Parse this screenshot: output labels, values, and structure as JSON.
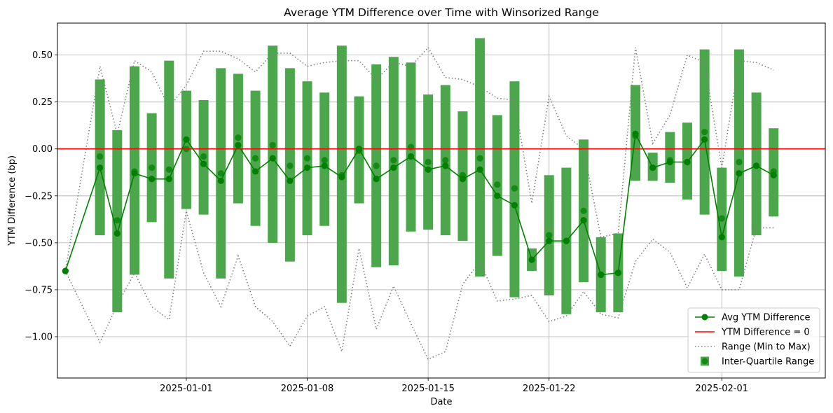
{
  "chart_data": {
    "type": "line",
    "title": "Average YTM Difference over Time with Winsorized Range",
    "xlabel": "Date",
    "ylabel": "YTM Difference (bp)",
    "x_tick_labels": [
      "2025-01-01",
      "2025-01-08",
      "2025-01-15",
      "2025-01-22",
      "2025-02-01"
    ],
    "y_tick_labels": [
      "−1.00",
      "−0.75",
      "−0.50",
      "−0.25",
      "0.00",
      "0.25",
      "0.50"
    ],
    "x_range": [
      "2024-12-25",
      "2025-02-05"
    ],
    "ylim": [
      -1.22,
      0.67
    ],
    "grid": true,
    "legend_position": "lower-right",
    "colors": {
      "avg": "#008000",
      "zero": "#ff0000",
      "range": "#808080",
      "iqr": "#4ca64c"
    },
    "dates": [
      "2024-12-25",
      "2024-12-27",
      "2024-12-28",
      "2024-12-29",
      "2024-12-30",
      "2024-12-31",
      "2025-01-01",
      "2025-01-02",
      "2025-01-03",
      "2025-01-04",
      "2025-01-05",
      "2025-01-06",
      "2025-01-07",
      "2025-01-08",
      "2025-01-09",
      "2025-01-10",
      "2025-01-11",
      "2025-01-12",
      "2025-01-13",
      "2025-01-14",
      "2025-01-15",
      "2025-01-16",
      "2025-01-17",
      "2025-01-18",
      "2025-01-19",
      "2025-01-20",
      "2025-01-21",
      "2025-01-22",
      "2025-01-23",
      "2025-01-24",
      "2025-01-25",
      "2025-01-26",
      "2025-01-27",
      "2025-01-28",
      "2025-01-29",
      "2025-01-30",
      "2025-01-31",
      "2025-02-01",
      "2025-02-02",
      "2025-02-03",
      "2025-02-04"
    ],
    "series": [
      {
        "name": "Avg YTM Difference",
        "values": [
          -0.65,
          -0.1,
          -0.45,
          -0.13,
          -0.16,
          -0.16,
          0.05,
          -0.08,
          -0.17,
          0.02,
          -0.12,
          -0.05,
          -0.17,
          -0.1,
          -0.09,
          -0.15,
          0.0,
          -0.16,
          -0.1,
          -0.04,
          -0.11,
          -0.09,
          -0.16,
          -0.11,
          -0.25,
          -0.3,
          -0.59,
          -0.49,
          -0.49,
          -0.38,
          -0.67,
          -0.66,
          0.08,
          -0.1,
          -0.07,
          -0.07,
          0.05,
          -0.47,
          -0.13,
          -0.09,
          -0.14
        ]
      },
      {
        "name": "Range (Min to Max)",
        "min": [
          -0.65,
          -1.03,
          -0.83,
          -0.66,
          -0.84,
          -0.91,
          -0.33,
          -0.66,
          -0.84,
          -0.57,
          -0.84,
          -0.92,
          -1.05,
          -0.89,
          -0.84,
          -1.08,
          -0.53,
          -0.96,
          -0.73,
          -0.93,
          -1.12,
          -1.08,
          -0.72,
          -0.6,
          -0.81,
          -0.8,
          -0.78,
          -0.92,
          -0.89,
          -0.76,
          -0.88,
          -0.9,
          -0.6,
          -0.48,
          -0.55,
          -0.74,
          -0.56,
          -0.75,
          -0.75,
          -0.42,
          -0.42
        ],
        "max": [
          -0.65,
          0.44,
          0.08,
          0.47,
          0.41,
          0.22,
          0.34,
          0.52,
          0.52,
          0.48,
          0.41,
          0.51,
          0.51,
          0.44,
          0.46,
          0.47,
          0.47,
          0.37,
          0.46,
          0.44,
          0.54,
          0.38,
          0.37,
          0.33,
          0.27,
          0.26,
          -0.29,
          0.28,
          0.07,
          0.0,
          -0.47,
          -0.45,
          0.54,
          0.03,
          0.18,
          0.5,
          0.46,
          -0.1,
          0.47,
          0.46,
          0.42
        ]
      },
      {
        "name": "Inter-Quartile Range",
        "q1": [
          -0.65,
          -0.46,
          -0.87,
          -0.67,
          -0.39,
          -0.69,
          -0.32,
          -0.35,
          -0.69,
          -0.29,
          -0.41,
          -0.5,
          -0.6,
          -0.46,
          -0.41,
          -0.82,
          -0.29,
          -0.63,
          -0.62,
          -0.44,
          -0.43,
          -0.46,
          -0.49,
          -0.68,
          -0.57,
          -0.79,
          -0.65,
          -0.78,
          -0.88,
          -0.71,
          -0.87,
          -0.87,
          -0.17,
          -0.17,
          -0.18,
          -0.27,
          -0.35,
          -0.65,
          -0.68,
          -0.46,
          -0.36
        ],
        "q3": [
          -0.65,
          0.37,
          0.1,
          0.44,
          0.19,
          0.47,
          0.31,
          0.26,
          0.43,
          0.4,
          0.31,
          0.55,
          0.43,
          0.36,
          0.3,
          0.55,
          0.28,
          0.45,
          0.49,
          0.46,
          0.29,
          0.34,
          0.2,
          0.59,
          0.18,
          0.36,
          -0.53,
          -0.14,
          -0.1,
          0.05,
          -0.47,
          -0.45,
          0.34,
          -0.02,
          0.09,
          0.14,
          0.53,
          -0.1,
          0.53,
          0.3,
          0.11
        ],
        "medians": [
          -0.65,
          -0.04,
          -0.38,
          -0.12,
          -0.1,
          -0.11,
          0.0,
          -0.04,
          -0.13,
          0.06,
          -0.05,
          0.02,
          -0.09,
          -0.05,
          -0.06,
          -0.14,
          -0.01,
          -0.09,
          -0.06,
          0.01,
          -0.07,
          -0.06,
          -0.14,
          -0.05,
          -0.19,
          -0.21,
          -0.59,
          -0.46,
          -0.49,
          -0.33,
          -0.67,
          -0.66,
          0.07,
          -0.1,
          -0.06,
          -0.07,
          0.09,
          -0.37,
          -0.07,
          -0.09,
          -0.12
        ]
      },
      {
        "name": "YTM Difference = 0",
        "y": 0
      }
    ]
  }
}
